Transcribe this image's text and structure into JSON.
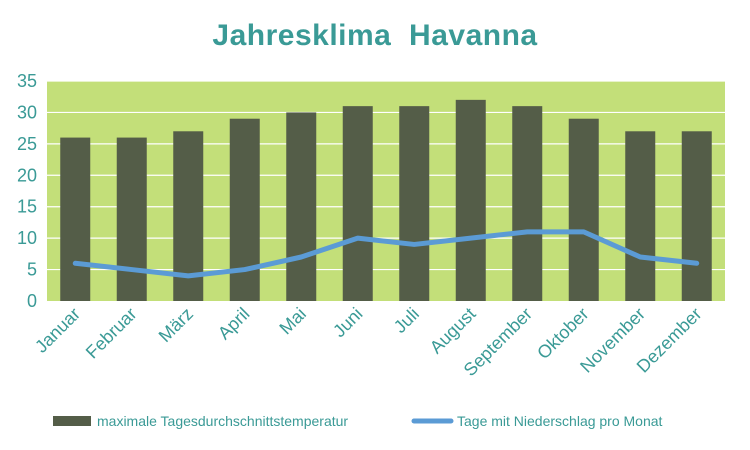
{
  "chart_data": {
    "type": "bar",
    "title": "Jahresklima  Havanna",
    "xlabel": "",
    "ylabel": "",
    "categories": [
      "Januar",
      "Februar",
      "März",
      "April",
      "Mai",
      "Juni",
      "Juli",
      "August",
      "September",
      "Oktober",
      "November",
      "Dezember"
    ],
    "ylim": [
      0,
      35
    ],
    "yticks": [
      "0",
      "5",
      "10",
      "15",
      "20",
      "25",
      "30",
      "35"
    ],
    "grid": true,
    "legend_position": "bottom",
    "series": [
      {
        "name": "maximale Tagesdurchschnittstemperatur",
        "type": "bar",
        "color": "#545d48",
        "values": [
          26,
          26,
          27,
          29,
          30,
          31,
          31,
          32,
          31,
          29,
          27,
          27
        ]
      },
      {
        "name": "Tage mit Niederschlag pro Monat",
        "type": "line",
        "color": "#5b9bd5",
        "values": [
          6,
          5,
          4,
          5,
          7,
          10,
          9,
          10,
          11,
          11,
          7,
          6
        ]
      }
    ],
    "colors": {
      "plot_background": "#c3df79",
      "gridline": "#ffffff",
      "text": "#3a9a96"
    }
  }
}
